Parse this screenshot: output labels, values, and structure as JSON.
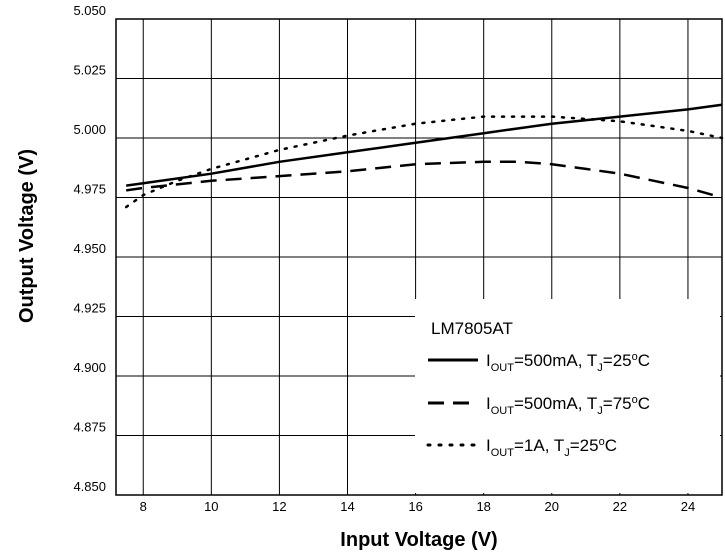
{
  "chart_data": {
    "type": "line",
    "xlabel": "Input Voltage (V)",
    "ylabel": "Output Voltage (V)",
    "xlim": [
      7.2,
      25
    ],
    "ylim": [
      4.85,
      5.05
    ],
    "x_ticks": [
      8,
      10,
      12,
      14,
      16,
      18,
      20,
      22,
      24
    ],
    "x_tick_labels": [
      "8",
      "10",
      "12",
      "14",
      "16",
      "18",
      "20",
      "22",
      "24"
    ],
    "y_ticks": [
      4.85,
      4.875,
      4.9,
      4.925,
      4.95,
      4.975,
      5.0,
      5.025,
      5.05
    ],
    "y_tick_labels": [
      "4.850",
      "4.875",
      "4.900",
      "4.925",
      "4.950",
      "4.975",
      "5.000",
      "5.025",
      "5.050"
    ],
    "grid": true,
    "legend": {
      "placement": "bottom-right",
      "title": "LM7805AT",
      "entries": [
        {
          "i_sub": "OUT",
          "i_rest": "=500mA, T",
          "t_sub": "J",
          "t_rest": "=25",
          "sup": "o",
          "unit": "C",
          "style": "solid"
        },
        {
          "i_sub": "OUT",
          "i_rest": "=500mA, T",
          "t_sub": "J",
          "t_rest": "=75",
          "sup": "o",
          "unit": "C",
          "style": "dashed"
        },
        {
          "i_sub": "OUT",
          "i_rest": "=1A, T",
          "t_sub": "J",
          "t_rest": "=25",
          "sup": "o",
          "unit": "C",
          "style": "dotted"
        }
      ]
    },
    "series": [
      {
        "style": "solid",
        "x": [
          7.5,
          8,
          10,
          12,
          14,
          16,
          18,
          20,
          22,
          24,
          25
        ],
        "y": [
          4.98,
          4.981,
          4.985,
          4.99,
          4.994,
          4.998,
          5.002,
          5.006,
          5.009,
          5.012,
          5.014
        ]
      },
      {
        "style": "dashed",
        "x": [
          7.5,
          8,
          10,
          12,
          14,
          16,
          18,
          19,
          20,
          21,
          22,
          23,
          24,
          25
        ],
        "y": [
          4.978,
          4.979,
          4.982,
          4.984,
          4.986,
          4.989,
          4.99,
          4.99,
          4.989,
          4.987,
          4.985,
          4.982,
          4.979,
          4.975
        ]
      },
      {
        "style": "dotted",
        "x": [
          7.5,
          8,
          9,
          10,
          12,
          14,
          16,
          18,
          19,
          20,
          22,
          24,
          25
        ],
        "y": [
          4.971,
          4.976,
          4.982,
          4.987,
          4.995,
          5.001,
          5.006,
          5.009,
          5.009,
          5.009,
          5.007,
          5.003,
          5.0
        ]
      }
    ]
  }
}
